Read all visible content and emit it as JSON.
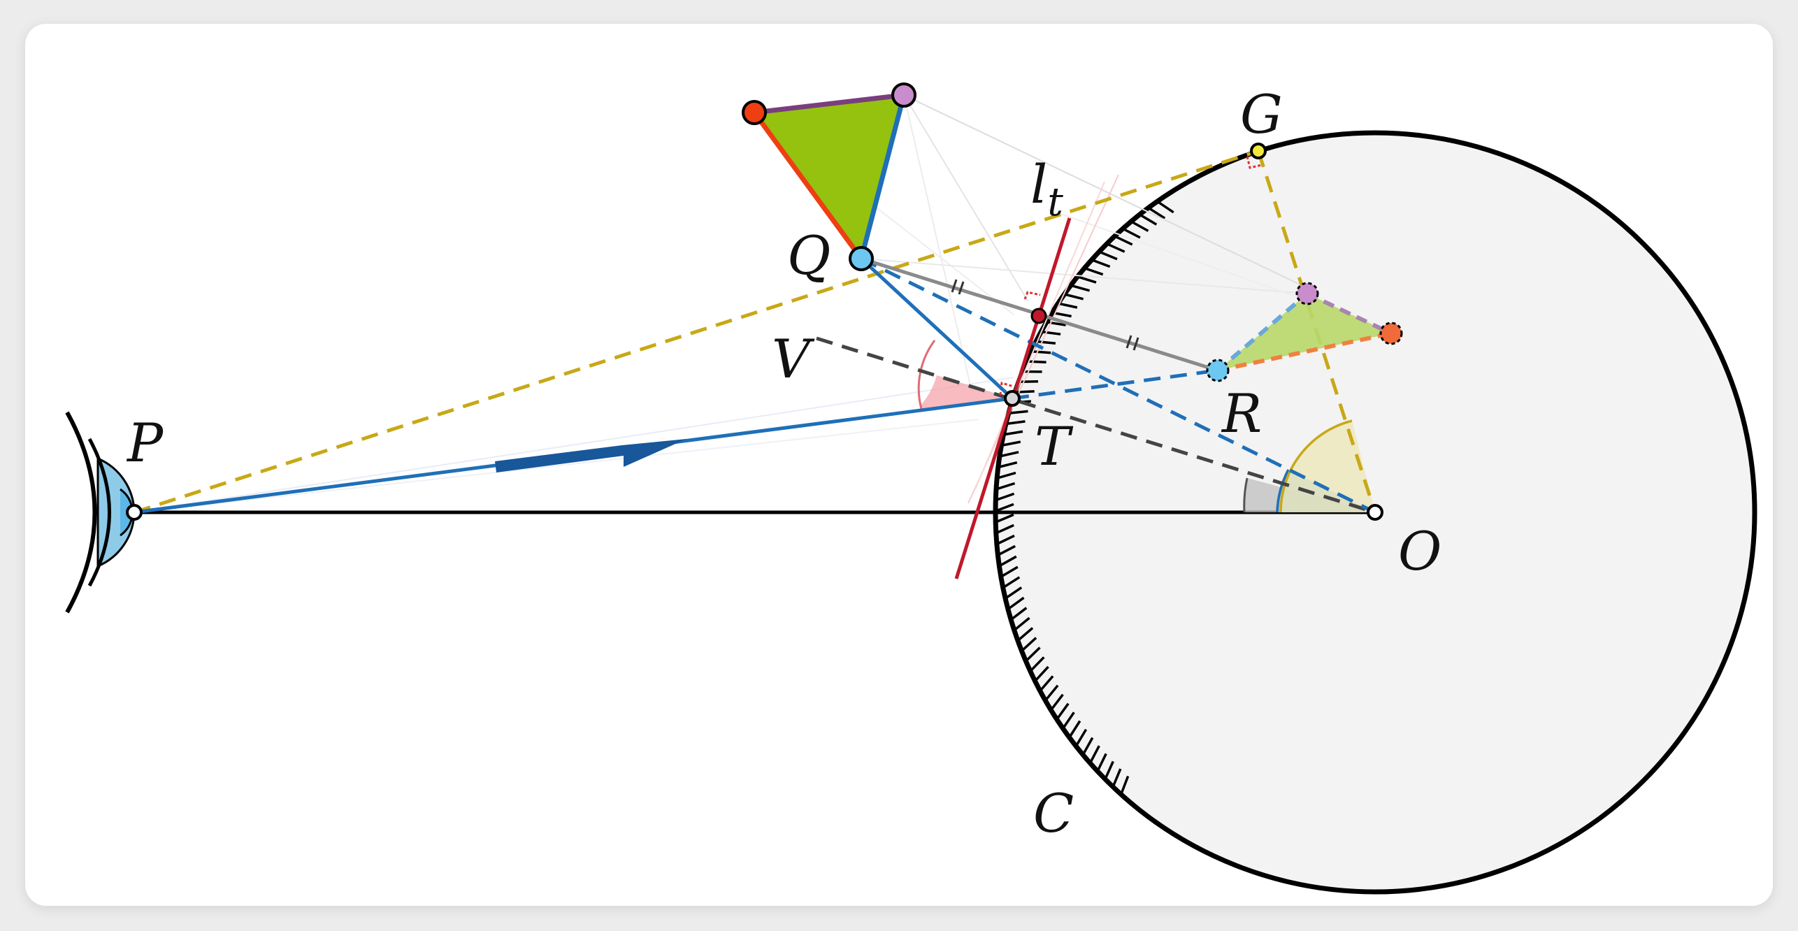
{
  "labels": {
    "P": "P",
    "Q": "Q",
    "V": "V",
    "T": "T",
    "R": "R",
    "G": "G",
    "O": "O",
    "C": "C",
    "lt_main": "l",
    "lt_sub": "t"
  },
  "colors": {
    "mirror_fill": "#f3f3f3",
    "outline": "#000000",
    "blue_ray": "#1f6fb8",
    "dark_blue_arrow": "#17579a",
    "gold_dashed": "#c8a816",
    "tangent_red": "#c0182a",
    "gray_link": "#8a8a8a",
    "dark_dashed": "#444444",
    "green_triangle": "#94c20f",
    "light_green": "#b8d86a",
    "orange_red": "#ee3e12",
    "purple": "#7a4a8a",
    "light_blue_point": "#6cc8f0",
    "pink_angle": "#f09aa0",
    "eye_blue": "#8ecbe8"
  },
  "icons": {
    "observer": "eye-icon"
  }
}
